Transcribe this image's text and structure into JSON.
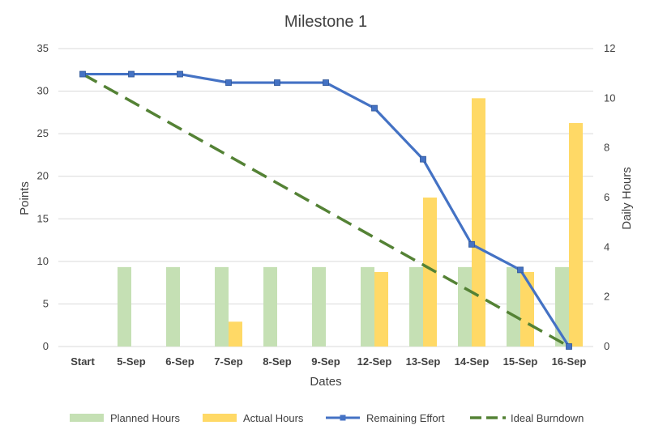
{
  "chart_data": {
    "type": "bar",
    "title": "Milestone 1",
    "xlabel": "Dates",
    "ylabel": "Points",
    "y2label": "Daily Hours",
    "ylim": [
      0,
      35
    ],
    "y2lim": [
      0,
      12
    ],
    "yticks": [
      "0",
      "5",
      "10",
      "15",
      "20",
      "25",
      "30",
      "35"
    ],
    "y2ticks": [
      "0",
      "2",
      "4",
      "6",
      "8",
      "10",
      "12"
    ],
    "categories": [
      "Start",
      "5-Sep",
      "6-Sep",
      "7-Sep",
      "8-Sep",
      "9-Sep",
      "12-Sep",
      "13-Sep",
      "14-Sep",
      "15-Sep",
      "16-Sep"
    ],
    "grid": true,
    "legend_position": "bottom",
    "series": [
      {
        "name": "Planned Hours",
        "kind": "bar",
        "axis": "right",
        "color": "#c5e0b4",
        "values": [
          0,
          3.2,
          3.2,
          3.2,
          3.2,
          3.2,
          3.2,
          3.2,
          3.2,
          3.2,
          3.2
        ]
      },
      {
        "name": "Actual Hours",
        "kind": "bar",
        "axis": "right",
        "color": "#ffd966",
        "values": [
          0,
          0,
          0,
          1,
          0,
          0,
          3,
          6,
          10,
          3,
          9
        ]
      },
      {
        "name": "Remaining Effort",
        "kind": "line",
        "axis": "left",
        "color": "#4472c4",
        "marker": "square",
        "values": [
          32,
          32,
          32,
          31,
          31,
          31,
          28,
          22,
          12,
          9,
          0
        ]
      },
      {
        "name": "Ideal Burndown",
        "kind": "dashed-line",
        "axis": "left",
        "color": "#548235",
        "values": [
          32,
          28.8,
          25.6,
          22.4,
          19.2,
          16,
          12.8,
          9.6,
          6.4,
          3.2,
          0
        ]
      }
    ]
  }
}
